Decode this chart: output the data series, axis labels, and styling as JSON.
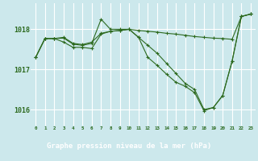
{
  "xlabel": "Graphe pression niveau de la mer (hPa)",
  "hours": [
    0,
    1,
    2,
    3,
    4,
    5,
    6,
    7,
    8,
    9,
    10,
    11,
    12,
    13,
    14,
    15,
    16,
    17,
    18,
    19,
    20,
    21,
    22,
    23
  ],
  "line1": [
    1017.3,
    1017.77,
    1017.77,
    1017.8,
    1017.65,
    1017.62,
    1017.68,
    1017.9,
    1017.95,
    1017.97,
    1018.0,
    1017.97,
    1017.95,
    1017.93,
    1017.9,
    1017.88,
    1017.85,
    1017.82,
    1017.8,
    1017.78,
    1017.77,
    1017.75,
    1018.32,
    1018.38
  ],
  "line2": [
    1017.3,
    1017.77,
    1017.77,
    1017.78,
    1017.63,
    1017.6,
    1017.65,
    1018.25,
    1018.0,
    1018.0,
    1018.0,
    1017.8,
    1017.6,
    1017.4,
    1017.15,
    1016.9,
    1016.65,
    1016.5,
    1016.0,
    1016.05,
    1016.35,
    1017.2,
    1018.32,
    1018.38
  ],
  "line3": [
    1017.3,
    1017.77,
    1017.77,
    1017.68,
    1017.55,
    1017.55,
    1017.52,
    1017.88,
    1017.95,
    1017.97,
    1018.0,
    1017.8,
    1017.3,
    1017.1,
    1016.88,
    1016.68,
    1016.58,
    1016.42,
    1015.97,
    1016.05,
    1016.35,
    1017.2,
    1018.32,
    1018.38
  ],
  "ylim": [
    1015.6,
    1018.65
  ],
  "yticks": [
    1016,
    1017,
    1018
  ],
  "line_color": "#2d6a1f",
  "bg_color": "#cce8ec",
  "grid_color": "#b0d8dc",
  "bottom_bg": "#3a5c1e",
  "bottom_text_color": "#ffffff"
}
